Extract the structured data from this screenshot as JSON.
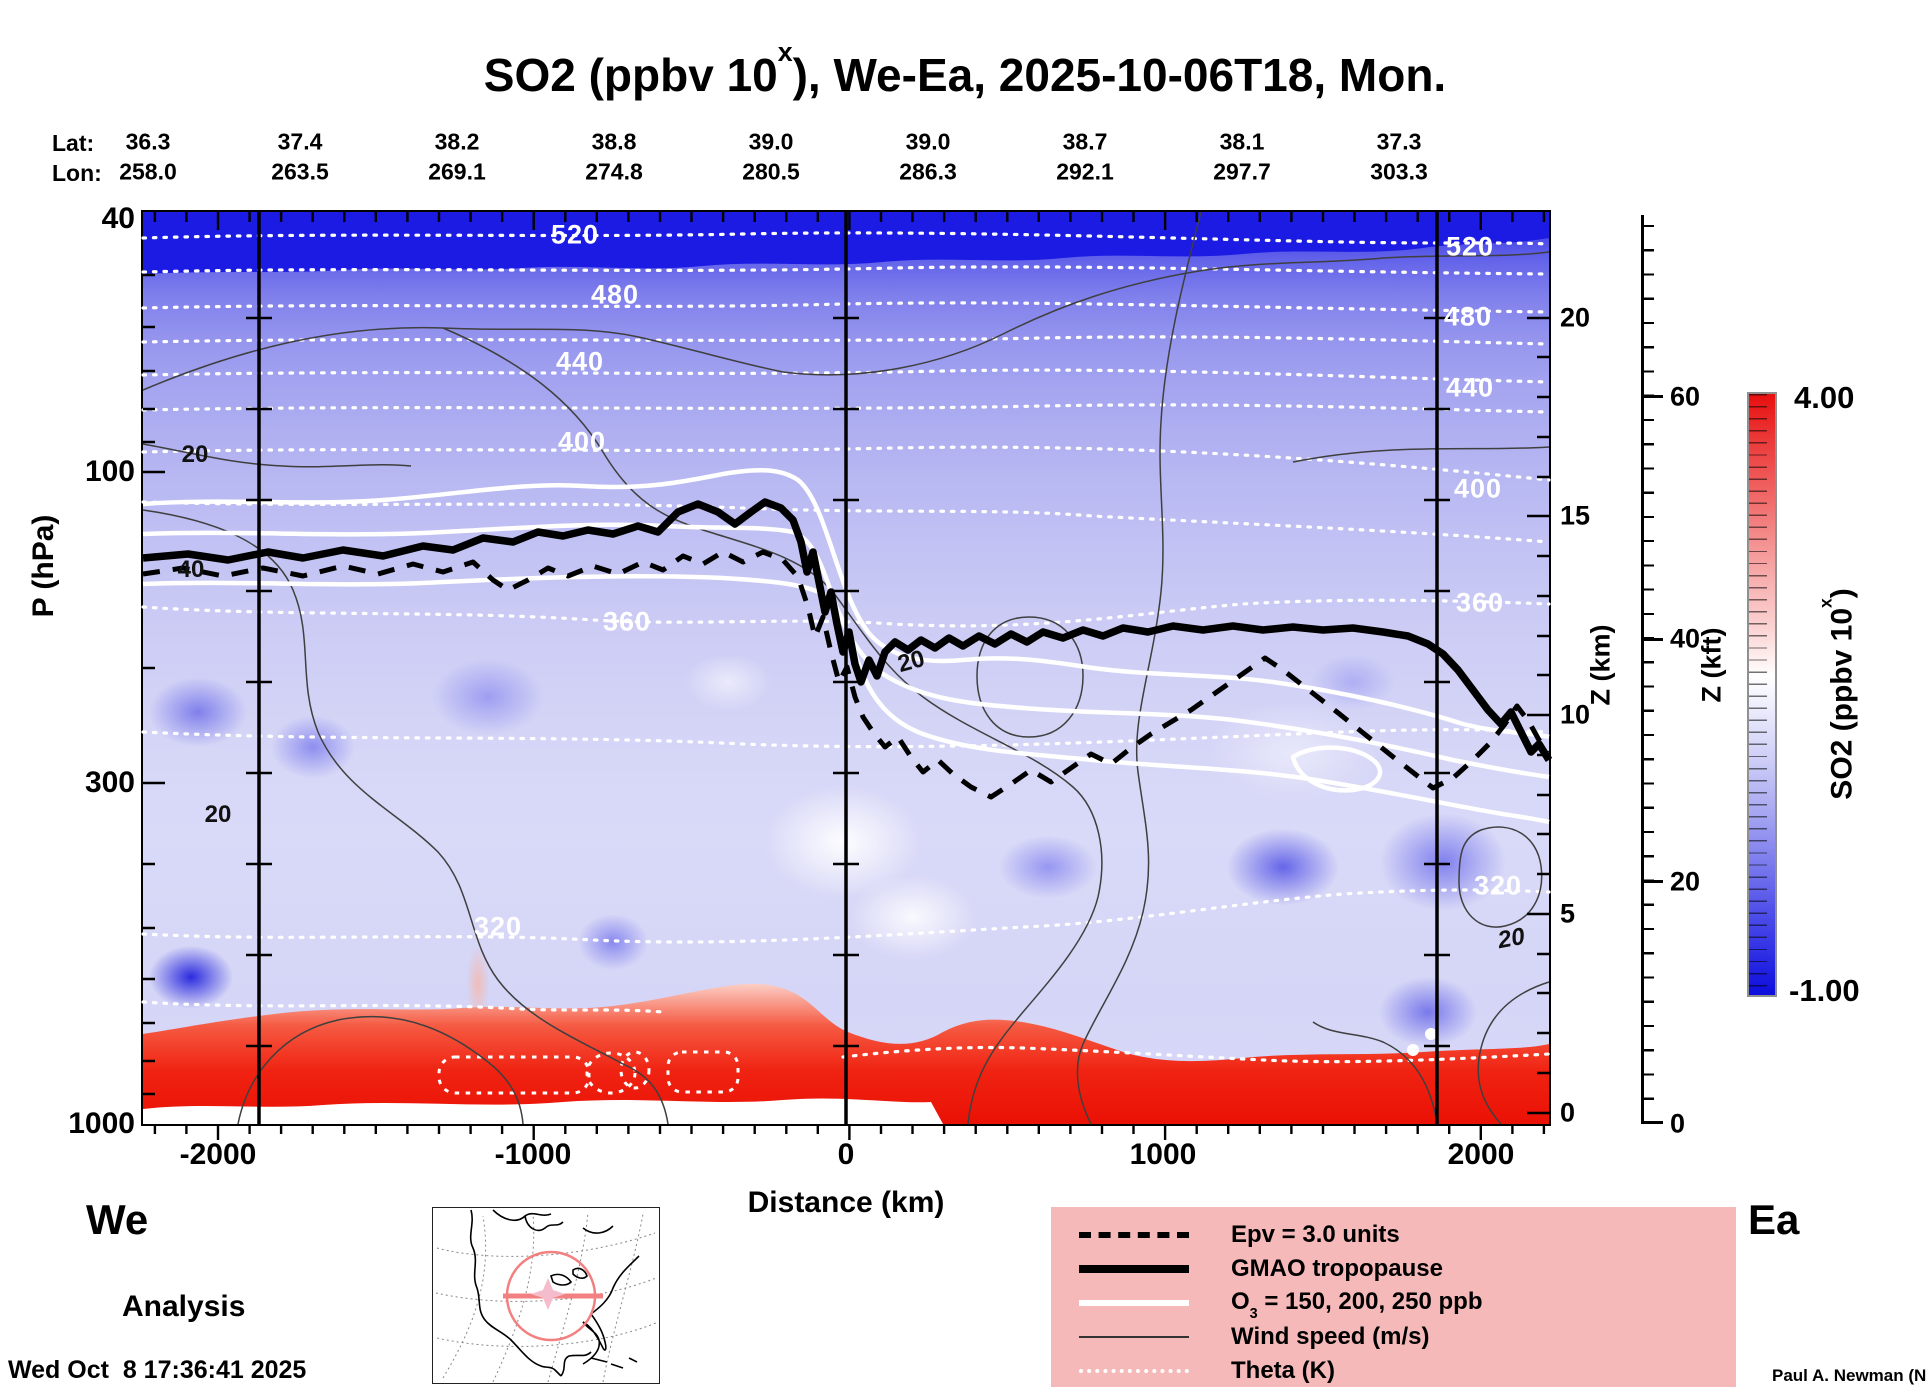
{
  "title": {
    "prefix": "SO2 (ppbv 10",
    "sup": "x",
    "suffix": "), We-Ea, 2025-10-06T18, Mon."
  },
  "top_axis": {
    "lat_label": "Lat:",
    "lon_label": "Lon:",
    "lat_values": [
      "36.3",
      "37.4",
      "38.2",
      "38.8",
      "39.0",
      "39.0",
      "38.7",
      "38.1",
      "37.3"
    ],
    "lon_values": [
      "258.0",
      "263.5",
      "269.1",
      "274.8",
      "280.5",
      "286.3",
      "292.1",
      "297.7",
      "303.3"
    ]
  },
  "y_axis": {
    "label": "P (hPa)",
    "ticks": [
      "40",
      "100",
      "300",
      "1000"
    ]
  },
  "x_axis": {
    "label": "Distance (km)",
    "ticks": [
      "-2000",
      "-1000",
      "0",
      "1000",
      "2000"
    ]
  },
  "z_km": {
    "label": "Z (km)",
    "ticks": [
      "20",
      "15",
      "10",
      "5",
      "0"
    ]
  },
  "z_kft": {
    "label": "Z (kft)",
    "ticks": [
      "60",
      "40",
      "20",
      "0"
    ]
  },
  "colorbar": {
    "max": "4.00",
    "min": "-1.00",
    "label_prefix": "SO2 (ppbv 10",
    "label_sup": "x",
    "label_suffix": ")"
  },
  "legend": {
    "epv": "Epv = 3.0 units",
    "tropopause": "GMAO tropopause",
    "o3_prefix": "O",
    "o3_sub": "3",
    "o3_suffix": " = 150, 200, 250 ppb",
    "wind": "Wind speed (m/s)",
    "theta": "Theta (K)"
  },
  "contours": {
    "t520": "520",
    "t480": "480",
    "t440": "440",
    "t400": "400",
    "t360": "360",
    "t320": "320",
    "w20": "20",
    "w40": "40"
  },
  "footer": {
    "we": "We",
    "ea": "Ea",
    "analysis": "Analysis",
    "timestamp": "Wed Oct  8 17:36:41 2025",
    "credit": "Paul A. Newman (NASA"
  },
  "chart_data": {
    "type": "heatmap",
    "title": "SO2 (ppbv 10^x), We-Ea, 2025-10-06T18, Mon.",
    "xlabel": "Distance (km)",
    "ylabel": "P (hPa)",
    "x_ticks": [
      -2000,
      -1000,
      0,
      1000,
      2000
    ],
    "xlim": [
      -2230,
      2230
    ],
    "y_scale": "log",
    "ylim_hPa": [
      1000,
      40
    ],
    "y_ticks_hPa": [
      40,
      100,
      300,
      1000
    ],
    "z_km_ticks": [
      0,
      5,
      10,
      15,
      20
    ],
    "z_kft_ticks": [
      0,
      20,
      40,
      60
    ],
    "colorbar": {
      "label": "SO2 (ppbv 10^x)",
      "min": -1.0,
      "max": 4.0,
      "palette": "blue-white-red"
    },
    "top_axis_lat": [
      36.3,
      37.4,
      38.2,
      38.8,
      39.0,
      39.0,
      38.7,
      38.1,
      37.3
    ],
    "top_axis_lon": [
      258.0,
      263.5,
      269.1,
      274.8,
      280.5,
      286.3,
      292.1,
      297.7,
      303.3
    ],
    "reference_vertical_lines_km": [
      -1860,
      0,
      1870
    ],
    "overlays": [
      {
        "name": "Epv",
        "level": "3.0 units",
        "style": "thick dashed black"
      },
      {
        "name": "GMAO tropopause",
        "style": "thick solid black",
        "approx_height_km": {
          "-2000km": 14.0,
          "-500km": 14.8,
          "0km": 15.2,
          "300km": 10.5,
          "1000km": 11.0,
          "2000km": 9.0
        }
      },
      {
        "name": "O3",
        "levels_ppb": [
          150,
          200,
          250
        ],
        "style": "solid white"
      },
      {
        "name": "Wind speed (m/s)",
        "labeled_levels": [
          20,
          40
        ],
        "style": "thin gray"
      },
      {
        "name": "Theta (K)",
        "labeled_levels": [
          320,
          360,
          400,
          440,
          480,
          520
        ],
        "style": "dotted white"
      }
    ],
    "field_summary": "SO2 near -1..0 (blue) through most of the troposphere/stratosphere, darkest blue band near 40 hPa; values above 1 (red) in the boundary layer below about 800 hPa along the whole section."
  }
}
